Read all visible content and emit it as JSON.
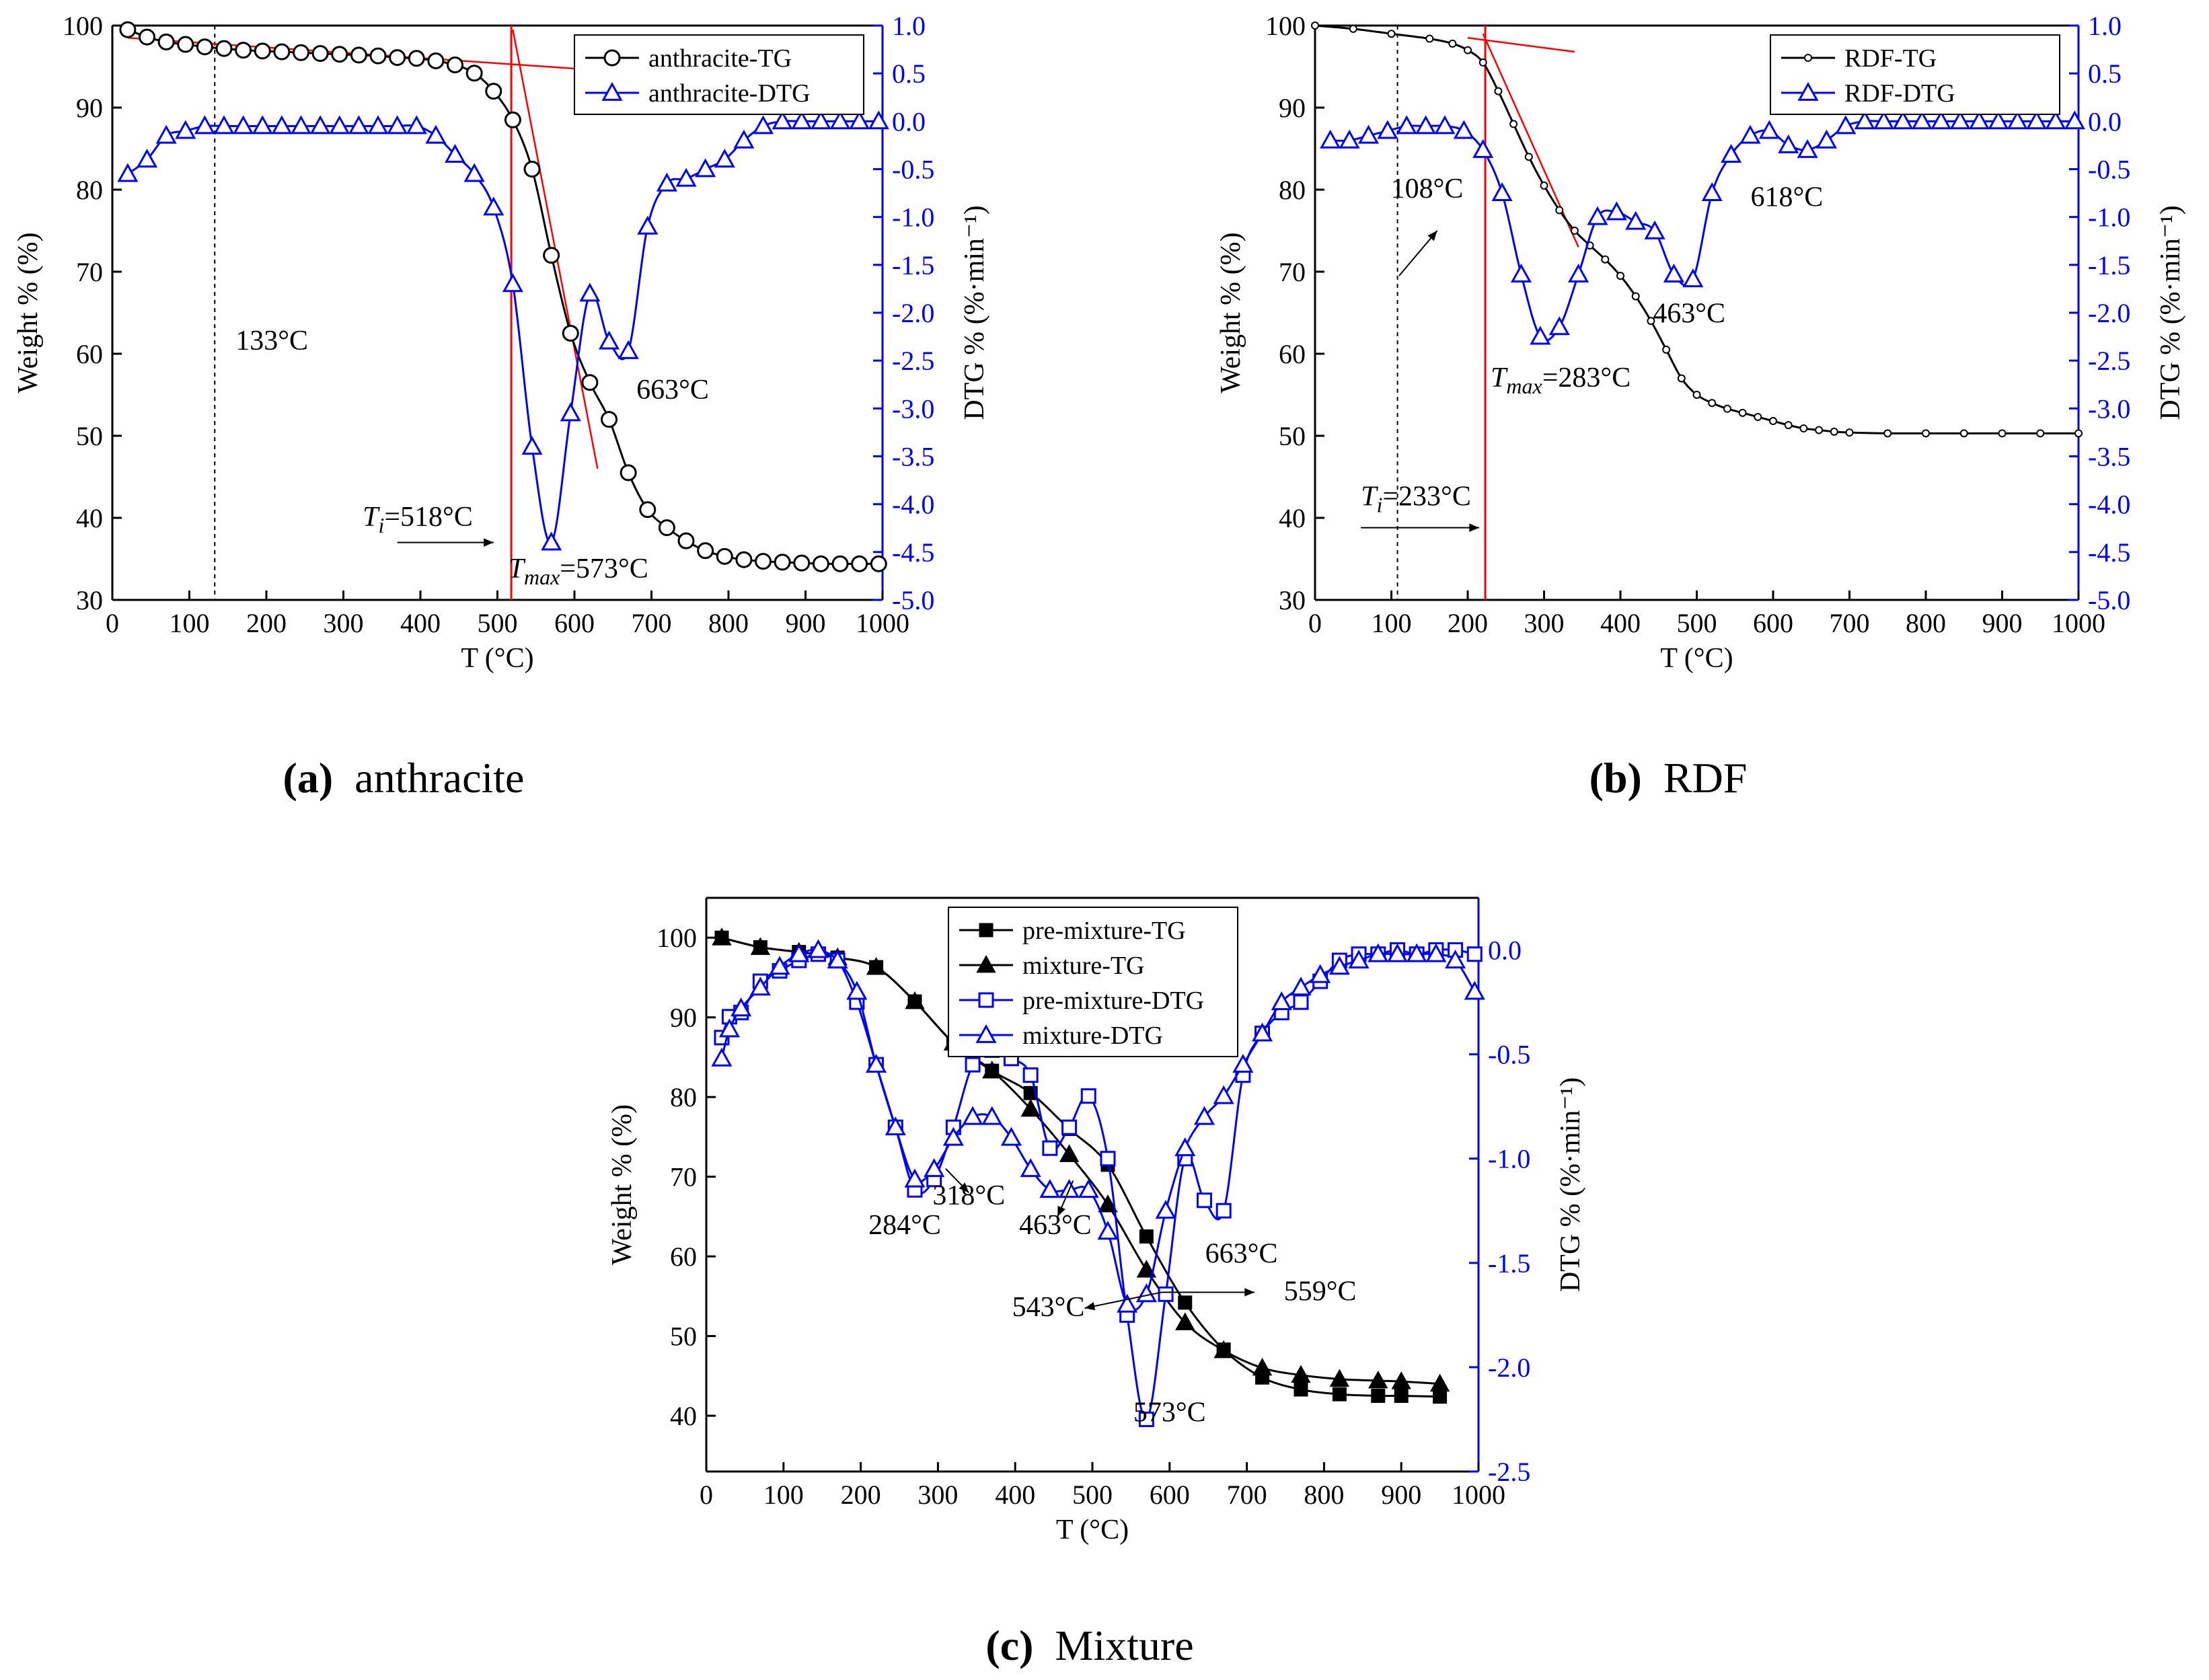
{
  "colors": {
    "tg": "#000000",
    "dtg": "#0000ff",
    "tangent": "#ff0000",
    "guide": "#000000",
    "axis": "#000000"
  },
  "chart_data": [
    {
      "type": "line",
      "panel": "a",
      "caption_letter": "(a)",
      "caption_text": "anthracite",
      "xlabel": "T (°C)",
      "ylabel": "Weight % (%)",
      "y2label": "DTG % (%·min⁻¹)",
      "xlim": [
        0,
        1000
      ],
      "ylim": [
        30,
        100
      ],
      "y2lim": [
        -5.0,
        1.0
      ],
      "xticks": [
        "0",
        "100",
        "200",
        "300",
        "400",
        "500",
        "600",
        "700",
        "800",
        "900",
        "1000"
      ],
      "yticks": [
        "30",
        "40",
        "50",
        "60",
        "70",
        "80",
        "90",
        "100"
      ],
      "y2ticks": [
        "-5.0",
        "-4.5",
        "-4.0",
        "-3.5",
        "-3.0",
        "-2.5",
        "-2.0",
        "-1.5",
        "-1.0",
        "-0.5",
        "0.0",
        "0.5",
        "1.0"
      ],
      "legend": [
        "anthracite-TG",
        "anthracite-DTG"
      ],
      "series": [
        {
          "name": "anthracite-TG",
          "axis": "left",
          "marker": "circle",
          "x": [
            20,
            45,
            70,
            95,
            120,
            145,
            170,
            195,
            220,
            245,
            270,
            295,
            320,
            345,
            370,
            395,
            420,
            445,
            470,
            495,
            520,
            545,
            570,
            595,
            620,
            645,
            670,
            695,
            720,
            745,
            770,
            795,
            820,
            845,
            870,
            895,
            920,
            945,
            970,
            995
          ],
          "y": [
            99.5,
            98.6,
            98.0,
            97.7,
            97.4,
            97.2,
            97.0,
            96.9,
            96.8,
            96.7,
            96.6,
            96.5,
            96.4,
            96.3,
            96.1,
            96.0,
            95.7,
            95.2,
            94.2,
            92.0,
            88.5,
            82.5,
            72.0,
            62.5,
            56.5,
            52.0,
            45.5,
            41.0,
            38.8,
            37.2,
            36.0,
            35.3,
            34.9,
            34.7,
            34.6,
            34.5,
            34.4,
            34.4,
            34.4,
            34.4
          ]
        },
        {
          "name": "anthracite-DTG",
          "axis": "right",
          "marker": "triangle",
          "x": [
            20,
            45,
            70,
            95,
            120,
            145,
            170,
            195,
            220,
            245,
            270,
            295,
            320,
            345,
            370,
            395,
            420,
            445,
            470,
            495,
            520,
            545,
            570,
            595,
            620,
            645,
            670,
            695,
            720,
            745,
            770,
            795,
            820,
            845,
            870,
            895,
            920,
            945,
            970,
            995
          ],
          "y": [
            -0.55,
            -0.4,
            -0.15,
            -0.1,
            -0.05,
            -0.05,
            -0.05,
            -0.05,
            -0.05,
            -0.05,
            -0.05,
            -0.05,
            -0.05,
            -0.05,
            -0.05,
            -0.05,
            -0.15,
            -0.35,
            -0.55,
            -0.9,
            -1.7,
            -3.4,
            -4.4,
            -3.05,
            -1.8,
            -2.3,
            -2.4,
            -1.1,
            -0.65,
            -0.6,
            -0.5,
            -0.4,
            -0.2,
            -0.05,
            0.0,
            0.0,
            0.0,
            0.0,
            0.0,
            0.0
          ]
        }
      ],
      "annotations": [
        {
          "text": "133°C",
          "x": 133
        },
        {
          "text": "663°C",
          "x": 663
        },
        {
          "text_prefix": "T",
          "sub": "i",
          "text_suffix": "=518°C",
          "x": 518
        },
        {
          "text_prefix": "T",
          "sub": "max",
          "text_suffix": "=573°C",
          "x": 573
        }
      ]
    },
    {
      "type": "line",
      "panel": "b",
      "caption_letter": "(b)",
      "caption_text": "RDF",
      "xlabel": "T (°C)",
      "ylabel": "Weight % (%)",
      "y2label": "DTG % (%·min⁻¹)",
      "xlim": [
        0,
        1000
      ],
      "ylim": [
        30,
        100
      ],
      "y2lim": [
        -5.0,
        1.0
      ],
      "xticks": [
        "0",
        "100",
        "200",
        "300",
        "400",
        "500",
        "600",
        "700",
        "800",
        "900",
        "1000"
      ],
      "yticks": [
        "30",
        "40",
        "50",
        "60",
        "70",
        "80",
        "90",
        "100"
      ],
      "y2ticks": [
        "-5.0",
        "-4.5",
        "-4.0",
        "-3.5",
        "-3.0",
        "-2.5",
        "-2.0",
        "-1.5",
        "-1.0",
        "-0.5",
        "0.0",
        "0.5",
        "1.0"
      ],
      "legend": [
        "RDF-TG",
        "RDF-DTG"
      ],
      "series": [
        {
          "name": "RDF-TG",
          "axis": "left",
          "marker": "small-circle",
          "x": [
            0,
            50,
            100,
            150,
            180,
            200,
            220,
            240,
            260,
            280,
            300,
            320,
            340,
            360,
            380,
            400,
            420,
            440,
            460,
            480,
            500,
            520,
            540,
            560,
            580,
            600,
            620,
            640,
            660,
            680,
            700,
            750,
            800,
            850,
            900,
            950,
            1000
          ],
          "y": [
            100,
            99.6,
            99.0,
            98.4,
            97.8,
            97.0,
            95.5,
            92.0,
            88.0,
            84.0,
            80.5,
            77.5,
            75.0,
            73.2,
            71.5,
            69.5,
            67.0,
            64.0,
            60.5,
            57.0,
            55.0,
            54.0,
            53.3,
            52.8,
            52.3,
            51.8,
            51.3,
            50.9,
            50.7,
            50.5,
            50.4,
            50.3,
            50.3,
            50.3,
            50.3,
            50.3,
            50.3
          ]
        },
        {
          "name": "RDF-DTG",
          "axis": "right",
          "marker": "triangle",
          "x": [
            20,
            45,
            70,
            95,
            120,
            145,
            170,
            195,
            220,
            245,
            270,
            295,
            320,
            345,
            370,
            395,
            420,
            445,
            470,
            495,
            520,
            545,
            570,
            595,
            620,
            645,
            670,
            695,
            720,
            745,
            770,
            795,
            820,
            845,
            870,
            895,
            920,
            945,
            970,
            995
          ],
          "y": [
            -0.2,
            -0.2,
            -0.15,
            -0.1,
            -0.05,
            -0.05,
            -0.05,
            -0.1,
            -0.3,
            -0.75,
            -1.6,
            -2.25,
            -2.15,
            -1.6,
            -1.0,
            -0.95,
            -1.05,
            -1.15,
            -1.6,
            -1.65,
            -0.75,
            -0.35,
            -0.15,
            -0.1,
            -0.25,
            -0.3,
            -0.2,
            -0.05,
            0.0,
            0.0,
            0.0,
            0.0,
            0.0,
            0.0,
            0.0,
            0.0,
            0.0,
            0.0,
            0.0,
            0.0
          ]
        }
      ],
      "annotations": [
        {
          "text": "108°C",
          "x": 108
        },
        {
          "text": "618°C",
          "x": 618
        },
        {
          "text": "463°C",
          "x": 463
        },
        {
          "text_prefix": "T",
          "sub": "i",
          "text_suffix": "=233°C",
          "x": 233
        },
        {
          "text_prefix": "T",
          "sub": "max",
          "text_suffix": "=283°C",
          "x": 283
        }
      ]
    },
    {
      "type": "line",
      "panel": "c",
      "caption_letter": "(c)",
      "caption_text": "Mixture",
      "xlabel": "T (°C)",
      "ylabel": "Weight % (%)",
      "y2label": "DTG % (%·min⁻¹)",
      "xlim": [
        0,
        1000
      ],
      "ylim": [
        33,
        105
      ],
      "y2lim": [
        -2.5,
        0.25
      ],
      "xticks": [
        "0",
        "100",
        "200",
        "300",
        "400",
        "500",
        "600",
        "700",
        "800",
        "900",
        "1000"
      ],
      "yticks": [
        "40",
        "50",
        "60",
        "70",
        "80",
        "90",
        "100"
      ],
      "y2ticks": [
        "-2.5",
        "-2.0",
        "-1.5",
        "-1.0",
        "-0.5",
        "0.0"
      ],
      "legend": [
        "pre-mixture-TG",
        "mixture-TG",
        "pre-mixture-DTG",
        "mixture-DTG"
      ],
      "series": [
        {
          "name": "pre-mixture-TG",
          "axis": "left",
          "marker": "filled-square",
          "x": [
            20,
            70,
            120,
            170,
            220,
            270,
            320,
            370,
            420,
            470,
            520,
            570,
            620,
            670,
            720,
            770,
            820,
            870,
            900,
            950
          ],
          "y": [
            100.0,
            98.8,
            98.2,
            97.5,
            96.3,
            92.0,
            86.8,
            83.3,
            80.5,
            76.0,
            71.5,
            62.5,
            54.2,
            48.3,
            44.8,
            43.3,
            42.7,
            42.5,
            42.5,
            42.4
          ]
        },
        {
          "name": "mixture-TG",
          "axis": "left",
          "marker": "filled-triangle",
          "x": [
            20,
            70,
            120,
            170,
            220,
            270,
            320,
            370,
            420,
            470,
            520,
            570,
            620,
            670,
            720,
            770,
            820,
            870,
            900,
            950
          ],
          "y": [
            100.0,
            98.8,
            98.2,
            97.5,
            96.3,
            92.0,
            86.8,
            83.3,
            78.5,
            72.8,
            66.5,
            58.3,
            51.7,
            48.2,
            46.0,
            45.1,
            44.6,
            44.4,
            44.3,
            44.0
          ]
        },
        {
          "name": "pre-mixture-DTG",
          "axis": "right",
          "marker": "open-square",
          "x": [
            20,
            30,
            45,
            70,
            95,
            120,
            145,
            170,
            195,
            220,
            245,
            270,
            295,
            320,
            345,
            370,
            395,
            420,
            445,
            470,
            495,
            520,
            545,
            570,
            595,
            620,
            645,
            670,
            695,
            720,
            745,
            770,
            795,
            820,
            845,
            870,
            895,
            920,
            945,
            970,
            995
          ],
          "y": [
            -0.42,
            -0.32,
            -0.3,
            -0.15,
            -0.1,
            -0.05,
            -0.02,
            -0.05,
            -0.25,
            -0.55,
            -0.85,
            -1.15,
            -1.1,
            -0.85,
            -0.55,
            -0.48,
            -0.52,
            -0.6,
            -0.95,
            -0.85,
            -0.7,
            -1.0,
            -1.75,
            -2.25,
            -1.65,
            -1.0,
            -1.2,
            -1.25,
            -0.6,
            -0.4,
            -0.3,
            -0.25,
            -0.15,
            -0.05,
            -0.02,
            -0.02,
            0.0,
            -0.02,
            0.0,
            0.0,
            -0.02
          ]
        },
        {
          "name": "mixture-DTG",
          "axis": "right",
          "marker": "open-triangle",
          "x": [
            20,
            30,
            45,
            70,
            95,
            120,
            145,
            170,
            195,
            220,
            245,
            270,
            295,
            320,
            345,
            370,
            395,
            420,
            445,
            470,
            495,
            520,
            545,
            570,
            595,
            620,
            645,
            670,
            695,
            720,
            745,
            770,
            795,
            820,
            845,
            870,
            895,
            920,
            945,
            970,
            995
          ],
          "y": [
            -0.52,
            -0.38,
            -0.28,
            -0.18,
            -0.08,
            -0.02,
            0.0,
            -0.05,
            -0.2,
            -0.55,
            -0.85,
            -1.1,
            -1.05,
            -0.9,
            -0.8,
            -0.8,
            -0.9,
            -1.05,
            -1.15,
            -1.15,
            -1.15,
            -1.35,
            -1.7,
            -1.65,
            -1.25,
            -0.95,
            -0.8,
            -0.7,
            -0.55,
            -0.4,
            -0.25,
            -0.18,
            -0.12,
            -0.08,
            -0.05,
            -0.02,
            -0.02,
            -0.02,
            -0.02,
            -0.05,
            -0.2
          ]
        }
      ],
      "annotations": [
        {
          "text": "318°C",
          "x": 318
        },
        {
          "text": "284°C",
          "x": 284
        },
        {
          "text": "463°C",
          "x": 463
        },
        {
          "text": "663°C",
          "x": 663
        },
        {
          "text": "543°C",
          "x": 543
        },
        {
          "text": "559°C",
          "x": 559
        },
        {
          "text": "573°C",
          "x": 573
        }
      ]
    }
  ]
}
